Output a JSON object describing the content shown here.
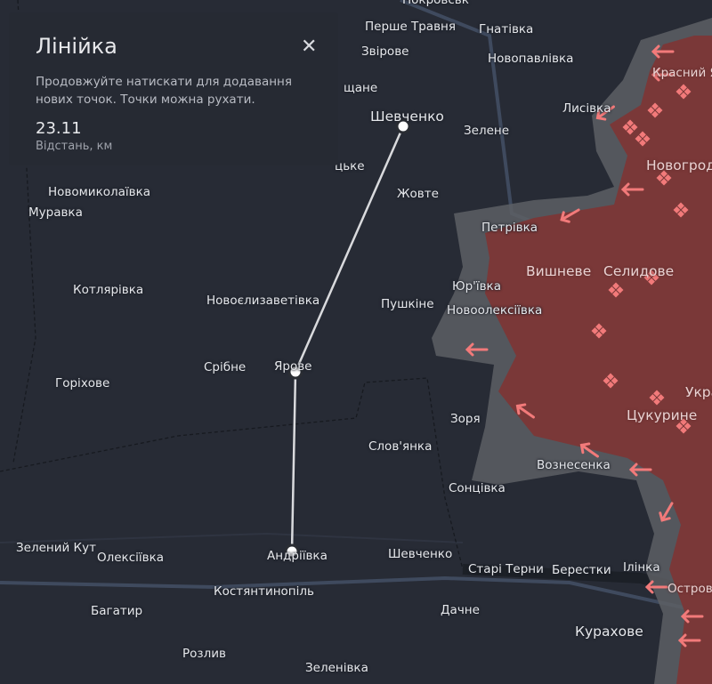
{
  "ruler_panel": {
    "title": "Лінійка",
    "hint": "Продовжуйте натискати для додавання нових точок. Точки можна рухати.",
    "distance": "23.11",
    "distance_label": "Відстань, км",
    "close_icon": "close-icon"
  },
  "colors": {
    "background": "#272b35",
    "occupied": "#7a3838",
    "grey_zone": "#5d5f64",
    "attack_arrow": "#f27a7a",
    "ruler_line": "#d9dadd"
  },
  "places": [
    "Покровськ",
    "Перше Травня",
    "Гнатівка",
    "Звірове",
    "Новопавлівка",
    "щане",
    "Шевченко",
    "Зелене",
    "Лисівка",
    "Красний Яр",
    "Новогродівка",
    "цьке",
    "Жовте",
    "Петрівка",
    "Новомиколаївка",
    "Муравка",
    "Вишневе",
    "Селидове",
    "Котлярівка",
    "Новоєлизаветівка",
    "Юр'ївка",
    "Пушкіне",
    "Новоолексіївка",
    "Срібне",
    "Ярове",
    "Горіхове",
    "Укра",
    "Цукурине",
    "Зоря",
    "Слов'янка",
    "Вознесенка",
    "Сонцівка",
    "Зелений Кут",
    "Олексіївка",
    "Андріївка",
    "Шевченко",
    "Старі Терни",
    "Берестки",
    "Ілінка",
    "Острово",
    "Костянтинопіль",
    "Багатир",
    "Дачне",
    "Курахове",
    "Розлив",
    "Зеленівка"
  ]
}
